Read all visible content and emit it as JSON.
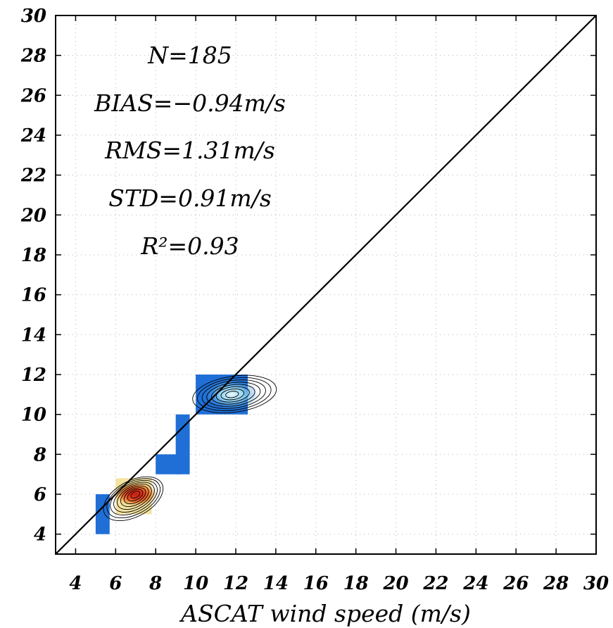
{
  "chart_data": {
    "type": "heatmap",
    "xlabel": "ASCAT wind speed (m/s)",
    "ylabel": "",
    "xlim": [
      3,
      30
    ],
    "ylim": [
      3,
      30
    ],
    "x_ticks": [
      4,
      6,
      8,
      10,
      12,
      14,
      16,
      18,
      20,
      22,
      24,
      26,
      28,
      30
    ],
    "y_ticks": [
      4,
      6,
      8,
      10,
      12,
      14,
      16,
      18,
      20,
      22,
      24,
      26,
      28,
      30
    ],
    "grid": true,
    "reference_line": {
      "from": [
        3,
        3
      ],
      "to": [
        30,
        30
      ]
    },
    "statistics": [
      {
        "text": "N=185"
      },
      {
        "text": "BIAS=−0.94m/s"
      },
      {
        "text": "RMS=1.31m/s"
      },
      {
        "text": "STD=0.91m/s"
      },
      {
        "text": "R²=0.93"
      }
    ],
    "density_blocks": [
      {
        "x": [
          5,
          5.7
        ],
        "y": [
          4,
          6
        ],
        "level": 0.08
      },
      {
        "x": [
          6,
          7.8
        ],
        "y": [
          5,
          6.8
        ],
        "level": 0.85
      },
      {
        "x": [
          8,
          9.3
        ],
        "y": [
          7,
          8
        ],
        "level": 0.12
      },
      {
        "x": [
          9,
          9.7
        ],
        "y": [
          7,
          10
        ],
        "level": 0.05
      },
      {
        "x": [
          10,
          12.6
        ],
        "y": [
          10,
          12
        ],
        "level": 0.25
      }
    ],
    "density_peaks": [
      {
        "x": 7.0,
        "y": 6.0,
        "level": 1.0
      },
      {
        "x": 11.8,
        "y": 11.0,
        "level": 0.3
      }
    ],
    "colors": {
      "low": "#1f6fd6",
      "mid": "#f3e3a0",
      "high": "#c81e12",
      "grid": "#b3b3b3",
      "frame": "#000000"
    }
  }
}
